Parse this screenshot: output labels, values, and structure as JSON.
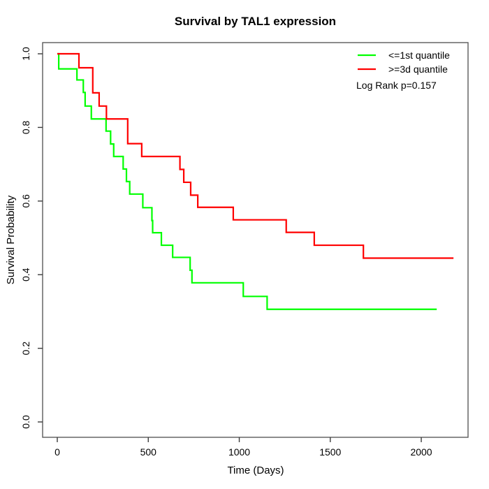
{
  "title": "Survival by TAL1 expression",
  "axes": {
    "x": {
      "label": "Time (Days)",
      "tick_labels": [
        "0",
        "500",
        "1000",
        "1500",
        "2000"
      ]
    },
    "y": {
      "label": "Survival Probability",
      "tick_labels": [
        "0.0",
        "0.2",
        "0.4",
        "0.6",
        "0.8",
        "1.0"
      ]
    }
  },
  "legend": {
    "items": [
      {
        "label": "<=1st quantile",
        "color": "#00ff00"
      },
      {
        "label": ">=3d quantile",
        "color": "#ff0000"
      }
    ],
    "p_text": "Log Rank p=0.157"
  },
  "chart_data": {
    "type": "line",
    "subtype": "kaplan_meier_step",
    "title": "Survival by TAL1 expression",
    "xlabel": "Time (Days)",
    "ylabel": "Survival Probability",
    "xlim": [
      0,
      2262
    ],
    "ylim": [
      0,
      1.0
    ],
    "x_ticks": [
      0,
      500,
      1000,
      1500,
      2000
    ],
    "y_ticks": [
      0,
      0.2,
      0.4,
      0.6,
      0.8,
      1
    ],
    "grid": false,
    "legend_position": "top-right",
    "annotation": "Log Rank p=0.157",
    "series": [
      {
        "name": "<=1st quantile",
        "color": "#00ff00",
        "start": [
          0,
          1.0
        ],
        "drops": [
          [
            8,
            0.959
          ],
          [
            108,
            0.929
          ],
          [
            143,
            0.895
          ],
          [
            153,
            0.858
          ],
          [
            187,
            0.823
          ],
          [
            268,
            0.79
          ],
          [
            293,
            0.755
          ],
          [
            310,
            0.721
          ],
          [
            362,
            0.687
          ],
          [
            380,
            0.653
          ],
          [
            398,
            0.619
          ],
          [
            470,
            0.582
          ],
          [
            520,
            0.547
          ],
          [
            524,
            0.514
          ],
          [
            572,
            0.48
          ],
          [
            634,
            0.447
          ],
          [
            730,
            0.412
          ],
          [
            740,
            0.378
          ],
          [
            1022,
            0.341
          ],
          [
            1153,
            0.306
          ]
        ],
        "end_t": 2085
      },
      {
        "name": ">=3d quantile",
        "color": "#ff0000",
        "start": [
          0,
          1.0
        ],
        "drops": [
          [
            119,
            0.962
          ],
          [
            195,
            0.894
          ],
          [
            230,
            0.858
          ],
          [
            270,
            0.823
          ],
          [
            387,
            0.756
          ],
          [
            464,
            0.721
          ],
          [
            674,
            0.686
          ],
          [
            695,
            0.651
          ],
          [
            733,
            0.616
          ],
          [
            772,
            0.583
          ],
          [
            967,
            0.549
          ],
          [
            1258,
            0.515
          ],
          [
            1412,
            0.48
          ],
          [
            1682,
            0.445
          ]
        ],
        "end_t": 2177
      }
    ]
  }
}
